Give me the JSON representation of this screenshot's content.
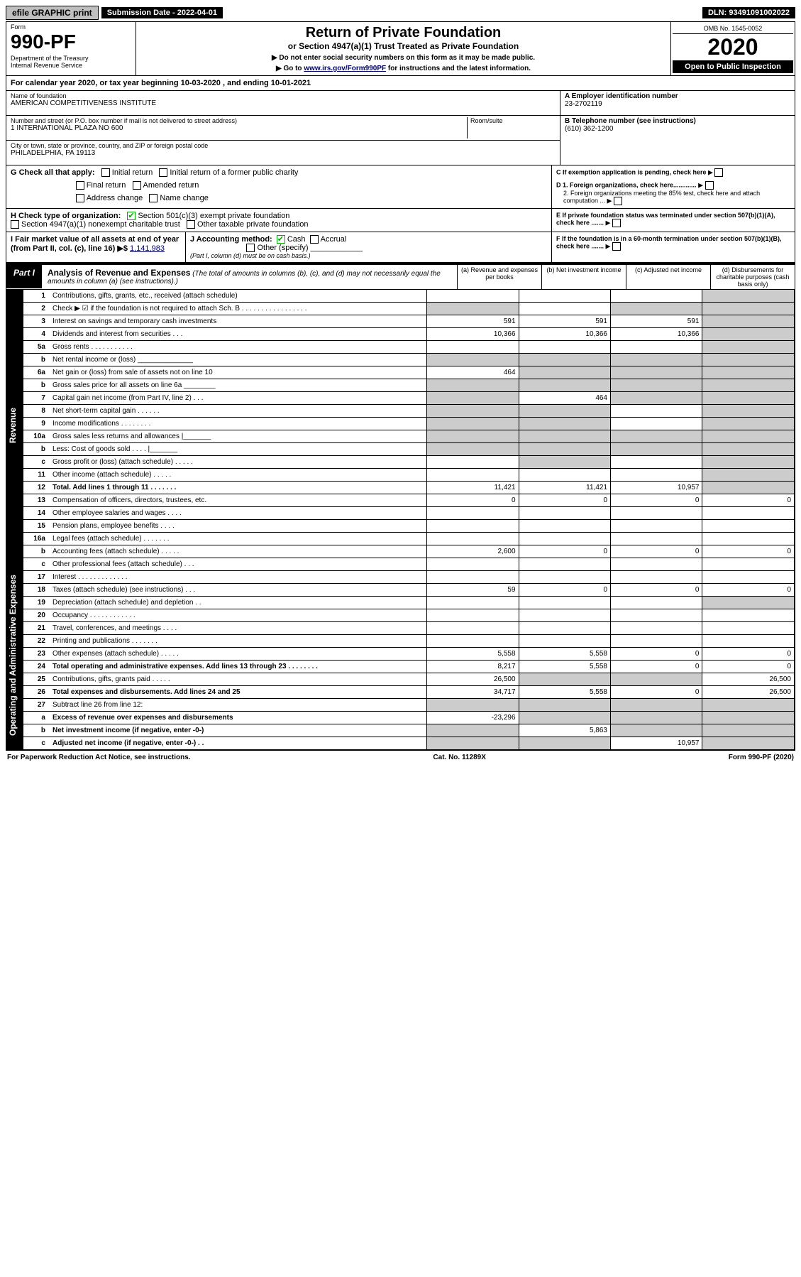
{
  "topbar": {
    "efile": "efile GRAPHIC print",
    "submission": "Submission Date - 2022-04-01",
    "dln": "DLN: 93491091002022"
  },
  "header": {
    "form_label": "Form",
    "form_no": "990-PF",
    "dept": "Department of the Treasury\nInternal Revenue Service",
    "title": "Return of Private Foundation",
    "subtitle": "or Section 4947(a)(1) Trust Treated as Private Foundation",
    "note1": "▶ Do not enter social security numbers on this form as it may be made public.",
    "note2_pre": "▶ Go to ",
    "note2_link": "www.irs.gov/Form990PF",
    "note2_post": " for instructions and the latest information.",
    "omb": "OMB No. 1545-0052",
    "year": "2020",
    "open": "Open to Public Inspection"
  },
  "cal_year": "For calendar year 2020, or tax year beginning 10-03-2020              , and ending 10-01-2021",
  "info": {
    "name_label": "Name of foundation",
    "name": "AMERICAN COMPETITIVENESS INSTITUTE",
    "addr_label": "Number and street (or P.O. box number if mail is not delivered to street address)",
    "addr": "1 INTERNATIONAL PLAZA NO 600",
    "room_label": "Room/suite",
    "city_label": "City or town, state or province, country, and ZIP or foreign postal code",
    "city": "PHILADELPHIA, PA  19113",
    "ein_label": "A Employer identification number",
    "ein": "23-2702119",
    "phone_label": "B Telephone number (see instructions)",
    "phone": "(610) 362-1200",
    "c": "C If exemption application is pending, check here",
    "d1": "D 1. Foreign organizations, check here.............",
    "d2": "2. Foreign organizations meeting the 85% test, check here and attach computation ...",
    "e": "E If private foundation status was terminated under section 507(b)(1)(A), check here .......",
    "f": "F If the foundation is in a 60-month termination under section 507(b)(1)(B), check here .......",
    "g_label": "G Check all that apply:",
    "g_opts": [
      "Initial return",
      "Initial return of a former public charity",
      "Final return",
      "Amended return",
      "Address change",
      "Name change"
    ],
    "h_label": "H Check type of organization:",
    "h_opt1": "Section 501(c)(3) exempt private foundation",
    "h_opt2": "Section 4947(a)(1) nonexempt charitable trust",
    "h_opt3": "Other taxable private foundation",
    "i_label": "I Fair market value of all assets at end of year (from Part II, col. (c), line 16) ▶$ ",
    "i_val": "1,141,983",
    "j_label": "J Accounting method:",
    "j_opts": [
      "Cash",
      "Accrual",
      "Other (specify)"
    ],
    "j_note": "(Part I, column (d) must be on cash basis.)"
  },
  "part1": {
    "label": "Part I",
    "title": "Analysis of Revenue and Expenses",
    "title_note": "(The total of amounts in columns (b), (c), and (d) may not necessarily equal the amounts in column (a) (see instructions).)",
    "cols": {
      "a": "(a)  Revenue and expenses per books",
      "b": "(b)  Net investment income",
      "c": "(c)  Adjusted net income",
      "d": "(d)  Disbursements for charitable purposes (cash basis only)"
    }
  },
  "side": {
    "revenue": "Revenue",
    "expenses": "Operating and Administrative Expenses"
  },
  "rows": [
    {
      "n": "1",
      "desc": "Contributions, gifts, grants, etc., received (attach schedule)",
      "a": "",
      "b": "",
      "c": "",
      "d": "",
      "shade_d": true
    },
    {
      "n": "2",
      "desc": "Check ▶ ☑ if the foundation is not required to attach Sch. B   . . . . . . . . . . . . . . . . .",
      "span": true,
      "shade_acd": true
    },
    {
      "n": "3",
      "desc": "Interest on savings and temporary cash investments",
      "a": "591",
      "b": "591",
      "c": "591",
      "d": "",
      "shade_d": true
    },
    {
      "n": "4",
      "desc": "Dividends and interest from securities   . . .",
      "a": "10,366",
      "b": "10,366",
      "c": "10,366",
      "d": "",
      "shade_d": true
    },
    {
      "n": "5a",
      "desc": "Gross rents   . . . . . . . . . . .",
      "a": "",
      "b": "",
      "c": "",
      "d": "",
      "shade_d": true
    },
    {
      "n": "b",
      "desc": "Net rental income or (loss)  ______________",
      "a": "",
      "b": "",
      "c": "",
      "d": "",
      "shade_all": true
    },
    {
      "n": "6a",
      "desc": "Net gain or (loss) from sale of assets not on line 10",
      "a": "464",
      "b": "",
      "c": "",
      "d": "",
      "shade_bcd": true
    },
    {
      "n": "b",
      "desc": "Gross sales price for all assets on line 6a ________",
      "a": "",
      "b": "",
      "c": "",
      "d": "",
      "shade_all": true
    },
    {
      "n": "7",
      "desc": "Capital gain net income (from Part IV, line 2)   . . .",
      "a": "",
      "b": "464",
      "c": "",
      "d": "",
      "shade_acd": true,
      "noshade_b": true
    },
    {
      "n": "8",
      "desc": "Net short-term capital gain   . . . . . .",
      "a": "",
      "b": "",
      "c": "",
      "d": "",
      "shade_abd": true
    },
    {
      "n": "9",
      "desc": "Income modifications   . . . . . . . .",
      "a": "",
      "b": "",
      "c": "",
      "d": "",
      "shade_abd": true
    },
    {
      "n": "10a",
      "desc": "Gross sales less returns and allowances  |_______",
      "a": "",
      "b": "",
      "c": "",
      "d": "",
      "shade_all": true
    },
    {
      "n": "b",
      "desc": "Less: Cost of goods sold   . . . .  |_______",
      "a": "",
      "b": "",
      "c": "",
      "d": "",
      "shade_all": true
    },
    {
      "n": "c",
      "desc": "Gross profit or (loss) (attach schedule)   . . . . .",
      "a": "",
      "b": "",
      "c": "",
      "d": "",
      "shade_bd": true
    },
    {
      "n": "11",
      "desc": "Other income (attach schedule)   . . . . .",
      "a": "",
      "b": "",
      "c": "",
      "d": "",
      "shade_d": true
    },
    {
      "n": "12",
      "desc": "Total. Add lines 1 through 11   . . . . . . .",
      "bold": true,
      "a": "11,421",
      "b": "11,421",
      "c": "10,957",
      "d": "",
      "shade_d": true
    },
    {
      "n": "13",
      "desc": "Compensation of officers, directors, trustees, etc.",
      "a": "0",
      "b": "0",
      "c": "0",
      "d": "0"
    },
    {
      "n": "14",
      "desc": "Other employee salaries and wages   . . . .",
      "a": "",
      "b": "",
      "c": "",
      "d": ""
    },
    {
      "n": "15",
      "desc": "Pension plans, employee benefits   . . . .",
      "a": "",
      "b": "",
      "c": "",
      "d": ""
    },
    {
      "n": "16a",
      "desc": "Legal fees (attach schedule)   . . . . . . .",
      "a": "",
      "b": "",
      "c": "",
      "d": ""
    },
    {
      "n": "b",
      "desc": "Accounting fees (attach schedule)   . . . . .",
      "a": "2,600",
      "b": "0",
      "c": "0",
      "d": "0"
    },
    {
      "n": "c",
      "desc": "Other professional fees (attach schedule)   . . .",
      "a": "",
      "b": "",
      "c": "",
      "d": ""
    },
    {
      "n": "17",
      "desc": "Interest   . . . . . . . . . . . . .",
      "a": "",
      "b": "",
      "c": "",
      "d": ""
    },
    {
      "n": "18",
      "desc": "Taxes (attach schedule) (see instructions)   . . .",
      "a": "59",
      "b": "0",
      "c": "0",
      "d": "0"
    },
    {
      "n": "19",
      "desc": "Depreciation (attach schedule) and depletion   . .",
      "a": "",
      "b": "",
      "c": "",
      "d": "",
      "shade_d": true
    },
    {
      "n": "20",
      "desc": "Occupancy   . . . . . . . . . . . .",
      "a": "",
      "b": "",
      "c": "",
      "d": ""
    },
    {
      "n": "21",
      "desc": "Travel, conferences, and meetings   . . . .",
      "a": "",
      "b": "",
      "c": "",
      "d": ""
    },
    {
      "n": "22",
      "desc": "Printing and publications   . . . . . . .",
      "a": "",
      "b": "",
      "c": "",
      "d": ""
    },
    {
      "n": "23",
      "desc": "Other expenses (attach schedule)   . . . . .",
      "a": "5,558",
      "b": "5,558",
      "c": "0",
      "d": "0"
    },
    {
      "n": "24",
      "desc": "Total operating and administrative expenses. Add lines 13 through 23   . . . . . . . .",
      "bold": true,
      "a": "8,217",
      "b": "5,558",
      "c": "0",
      "d": "0"
    },
    {
      "n": "25",
      "desc": "Contributions, gifts, grants paid   . . . . .",
      "a": "26,500",
      "b": "",
      "c": "",
      "d": "26,500",
      "shade_bc": true
    },
    {
      "n": "26",
      "desc": "Total expenses and disbursements. Add lines 24 and 25",
      "bold": true,
      "a": "34,717",
      "b": "5,558",
      "c": "0",
      "d": "26,500"
    },
    {
      "n": "27",
      "desc": "Subtract line 26 from line 12:",
      "a": "",
      "b": "",
      "c": "",
      "d": "",
      "shade_all": true
    },
    {
      "n": "a",
      "desc": "Excess of revenue over expenses and disbursements",
      "bold": true,
      "a": "-23,296",
      "b": "",
      "c": "",
      "d": "",
      "shade_bcd": true
    },
    {
      "n": "b",
      "desc": "Net investment income (if negative, enter -0-)",
      "bold": true,
      "a": "",
      "b": "5,863",
      "c": "",
      "d": "",
      "shade_acd": true,
      "noshade_b": true
    },
    {
      "n": "c",
      "desc": "Adjusted net income (if negative, enter -0-)   . .",
      "bold": true,
      "a": "",
      "b": "",
      "c": "10,957",
      "d": "",
      "shade_abd": true
    }
  ],
  "footer": {
    "left": "For Paperwork Reduction Act Notice, see instructions.",
    "mid": "Cat. No. 11289X",
    "right": "Form 990-PF (2020)"
  }
}
